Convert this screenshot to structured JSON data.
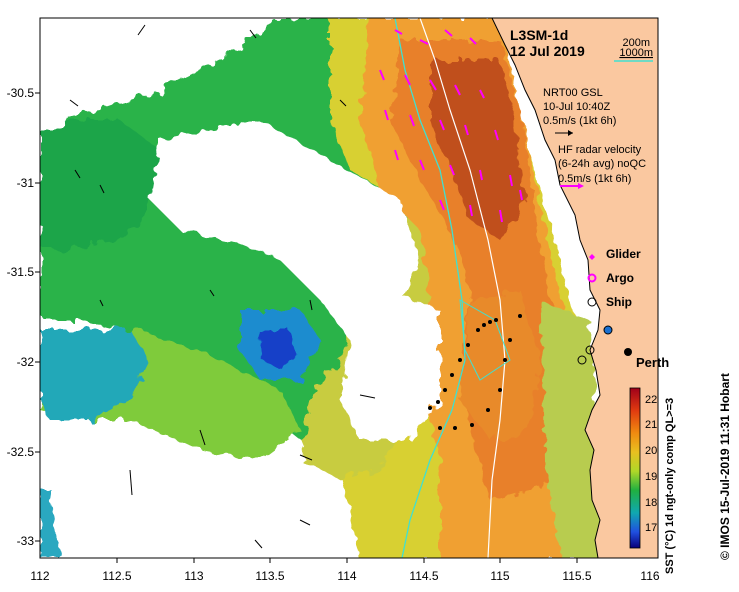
{
  "title": {
    "product": "L3SM-1d",
    "date": "12 Jul 2019"
  },
  "depth_legend": {
    "d200": "200m",
    "d1000": "1000m"
  },
  "vectors": {
    "gsl_l1": "NRT00 GSL",
    "gsl_l2": "10-Jul 10:40Z",
    "gsl_scale": "0.5m/s (1kt 6h)",
    "hf_l1": "HF radar velocity",
    "hf_l2": "(6-24h avg) noQC",
    "hf_scale": "0.5m/s (1kt 6h)"
  },
  "platforms": {
    "glider": "Glider",
    "argo": "Argo",
    "ship": "Ship"
  },
  "place": {
    "perth": "Perth"
  },
  "colorbar": {
    "label": "SST (°C) 1d ngt-only comp QL>=3",
    "ticks": [
      "22",
      "21",
      "20",
      "19",
      "18",
      "17"
    ]
  },
  "axes": {
    "x_ticks": [
      "112",
      "112.5",
      "113",
      "113.5",
      "114",
      "114.5",
      "115",
      "115.5",
      "116"
    ],
    "y_ticks": [
      "-30.5",
      "-31",
      "-31.5",
      "-32",
      "-32.5",
      "-33"
    ]
  },
  "credit": "© IMOS 15-Jul-2019 11:31 Hobart",
  "colors": {
    "land": "#fac8a0",
    "glider": "#ff00ff",
    "isobath_200": "#ffffff",
    "isobath_1000": "#40e0d0"
  }
}
